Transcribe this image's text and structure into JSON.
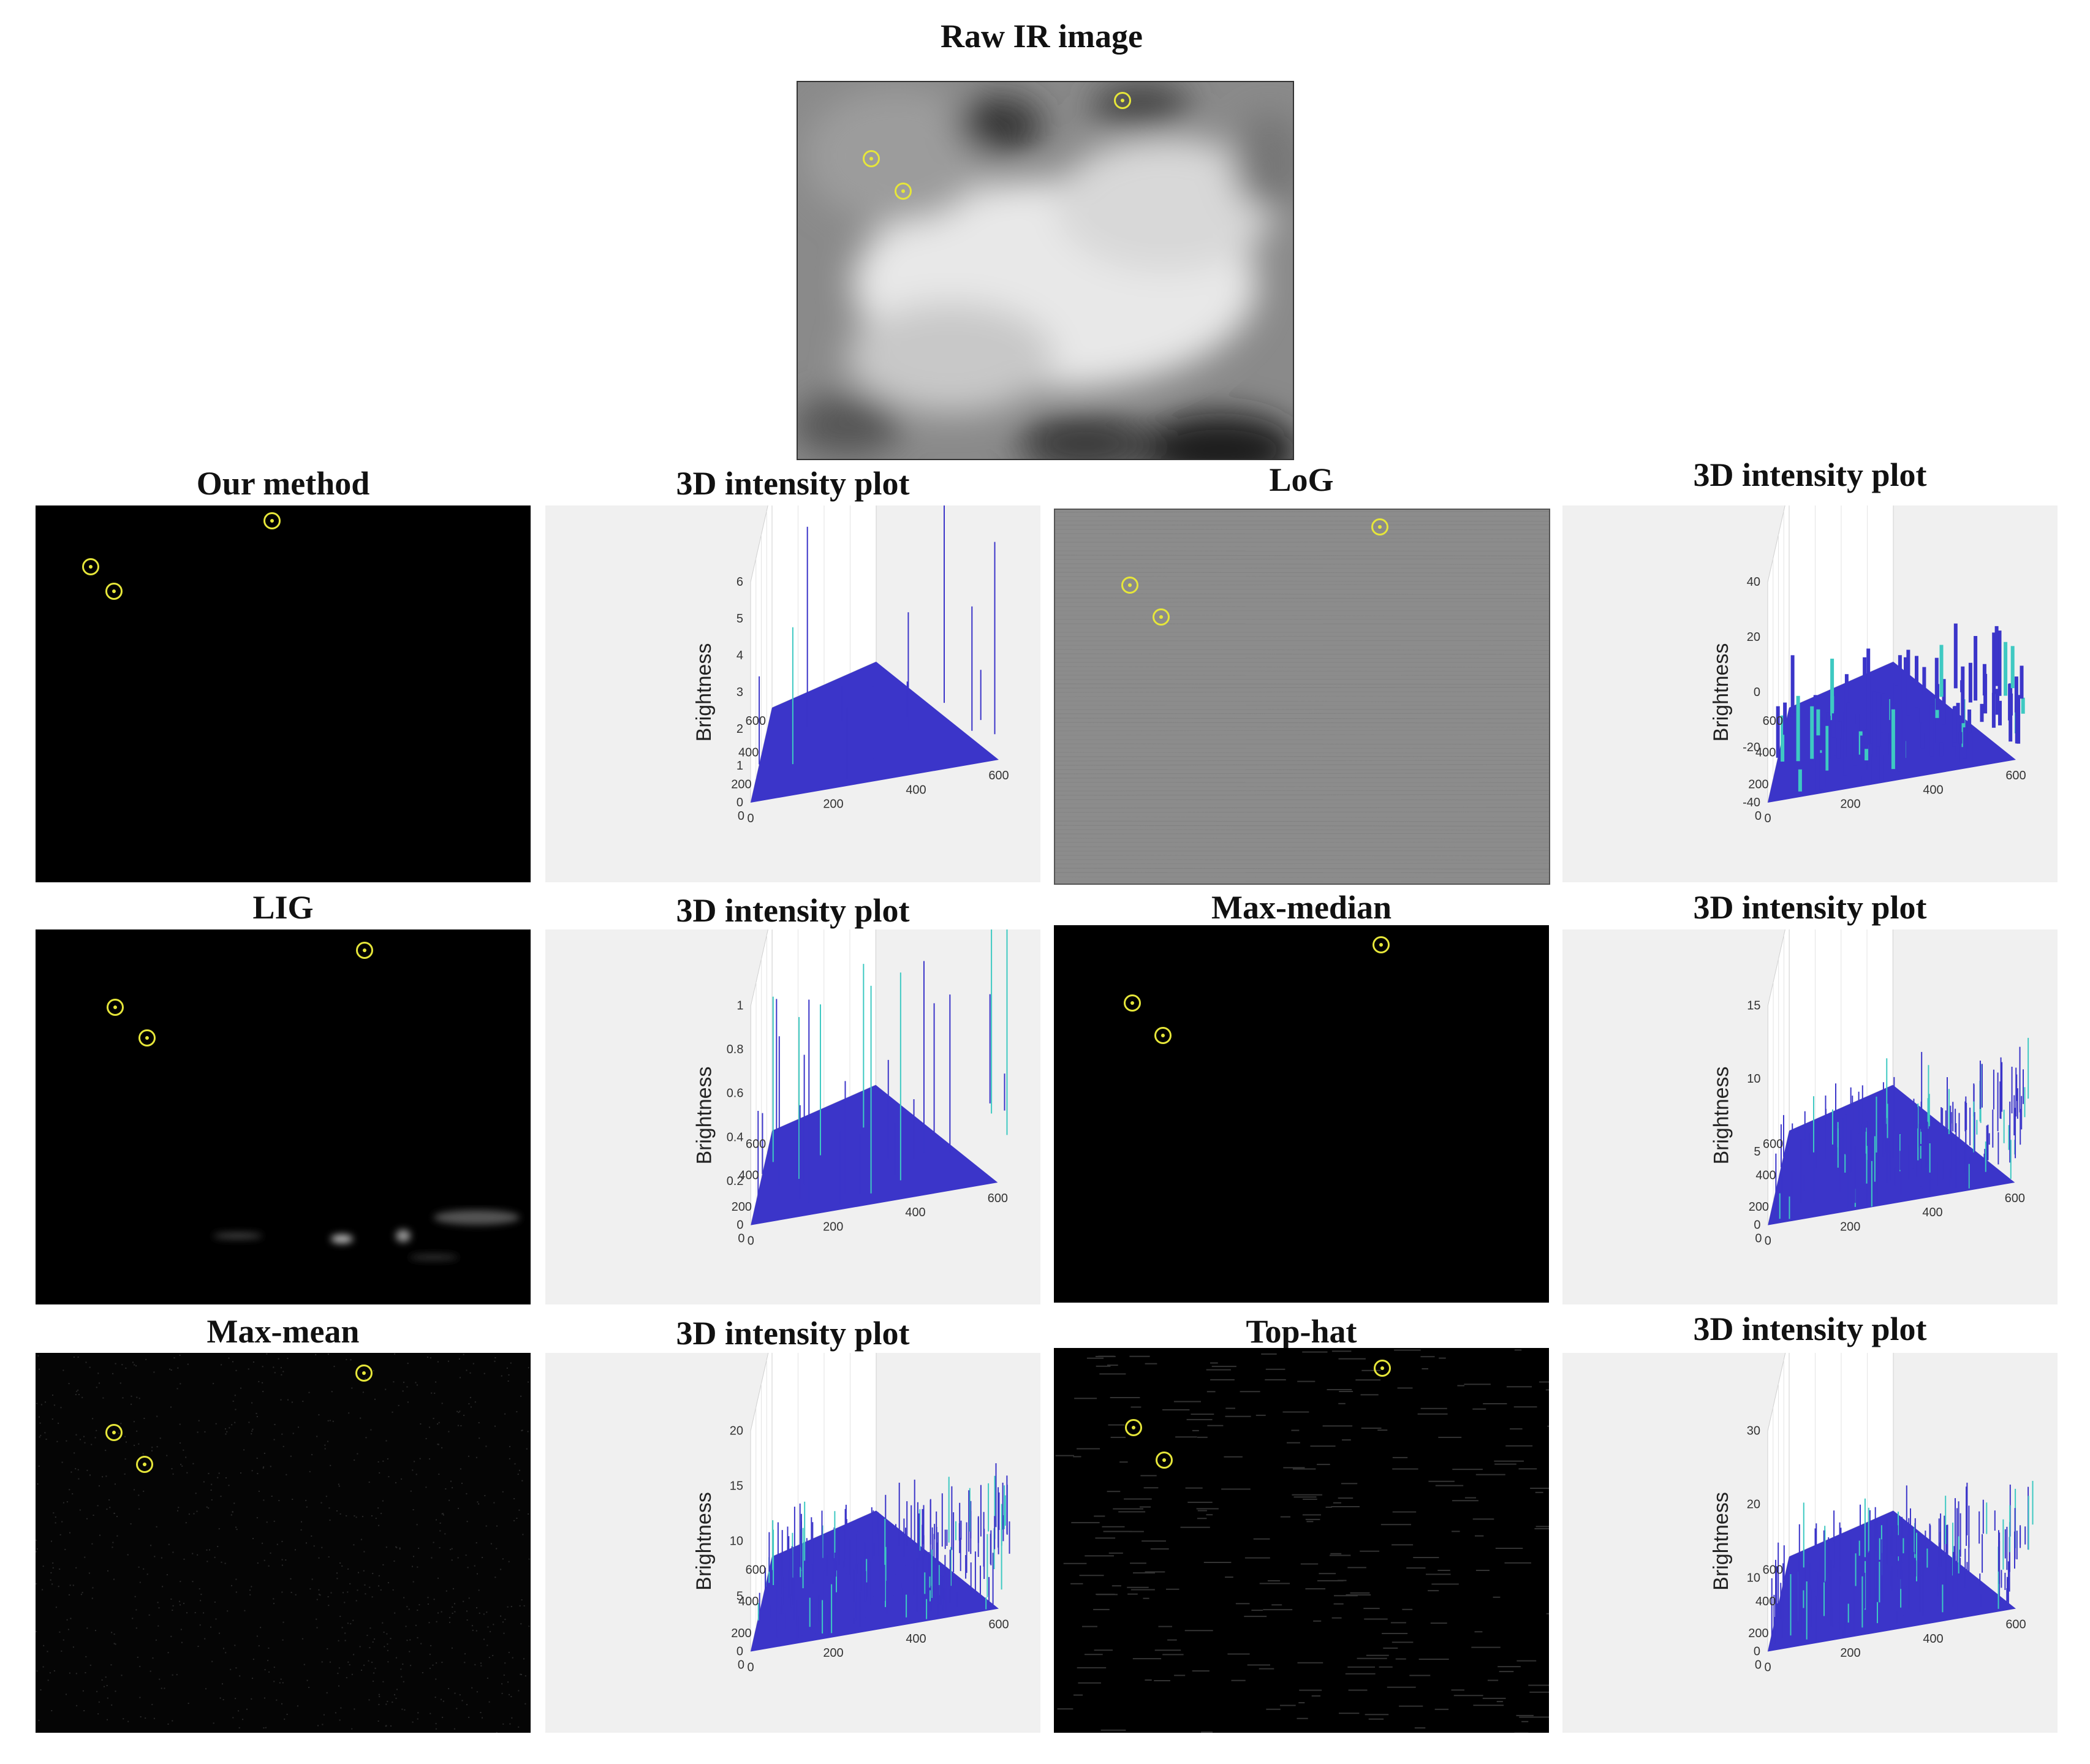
{
  "figure": {
    "raw": {
      "title": "Raw IR image"
    },
    "panels": [
      {
        "id": "our-method",
        "title": "Our method",
        "plot_title": "3D intensity plot"
      },
      {
        "id": "log",
        "title": "LoG",
        "plot_title": "3D intensity plot"
      },
      {
        "id": "lig",
        "title": "LIG",
        "plot_title": "3D intensity plot"
      },
      {
        "id": "max-median",
        "title": "Max-median",
        "plot_title": "3D intensity plot"
      },
      {
        "id": "max-mean",
        "title": "Max-mean",
        "plot_title": "3D intensity plot"
      },
      {
        "id": "top-hat",
        "title": "Top-hat",
        "plot_title": "3D intensity plot"
      }
    ],
    "colors": {
      "marker": "#e6e63a",
      "surface": "#3b35c9",
      "surface_alt": "#3ec9c2",
      "plot_bg": "#f0f0f0"
    }
  },
  "chart_data": [
    {
      "type": "surface",
      "title": "3D intensity plot",
      "zlabel": "Brightness",
      "zticks": [
        "0",
        "1",
        "2",
        "3",
        "4",
        "5",
        "6"
      ],
      "xticks": [
        "0",
        "200",
        "400",
        "600"
      ],
      "yticks": [
        "0",
        "200",
        "400",
        "600"
      ]
    },
    {
      "type": "surface",
      "title": "3D intensity plot",
      "zlabel": "Brightness",
      "zticks": [
        "-40",
        "-20",
        "0",
        "20",
        "40"
      ],
      "xticks": [
        "0",
        "200",
        "400",
        "600"
      ],
      "yticks": [
        "0",
        "200",
        "400",
        "600"
      ]
    },
    {
      "type": "surface",
      "title": "3D intensity plot",
      "zlabel": "Brightness",
      "zticks": [
        "0",
        "0.2",
        "0.4",
        "0.6",
        "0.8",
        "1"
      ],
      "xticks": [
        "0",
        "200",
        "400",
        "600"
      ],
      "yticks": [
        "0",
        "200",
        "400",
        "600"
      ]
    },
    {
      "type": "surface",
      "title": "3D intensity plot",
      "zlabel": "Brightness",
      "zticks": [
        "0",
        "5",
        "10",
        "15"
      ],
      "xticks": [
        "0",
        "200",
        "400",
        "600"
      ],
      "yticks": [
        "0",
        "200",
        "400",
        "600"
      ]
    },
    {
      "type": "surface",
      "title": "3D intensity plot",
      "zlabel": "Brightness",
      "zticks": [
        "0",
        "5",
        "10",
        "15",
        "20"
      ],
      "xticks": [
        "0",
        "200",
        "400",
        "600"
      ],
      "yticks": [
        "0",
        "200",
        "400",
        "600"
      ]
    },
    {
      "type": "surface",
      "title": "3D intensity plot",
      "zlabel": "Brightness",
      "zticks": [
        "0",
        "10",
        "20",
        "30"
      ],
      "xticks": [
        "0",
        "200",
        "400",
        "600"
      ],
      "yticks": [
        "0",
        "200",
        "400",
        "600"
      ]
    }
  ]
}
